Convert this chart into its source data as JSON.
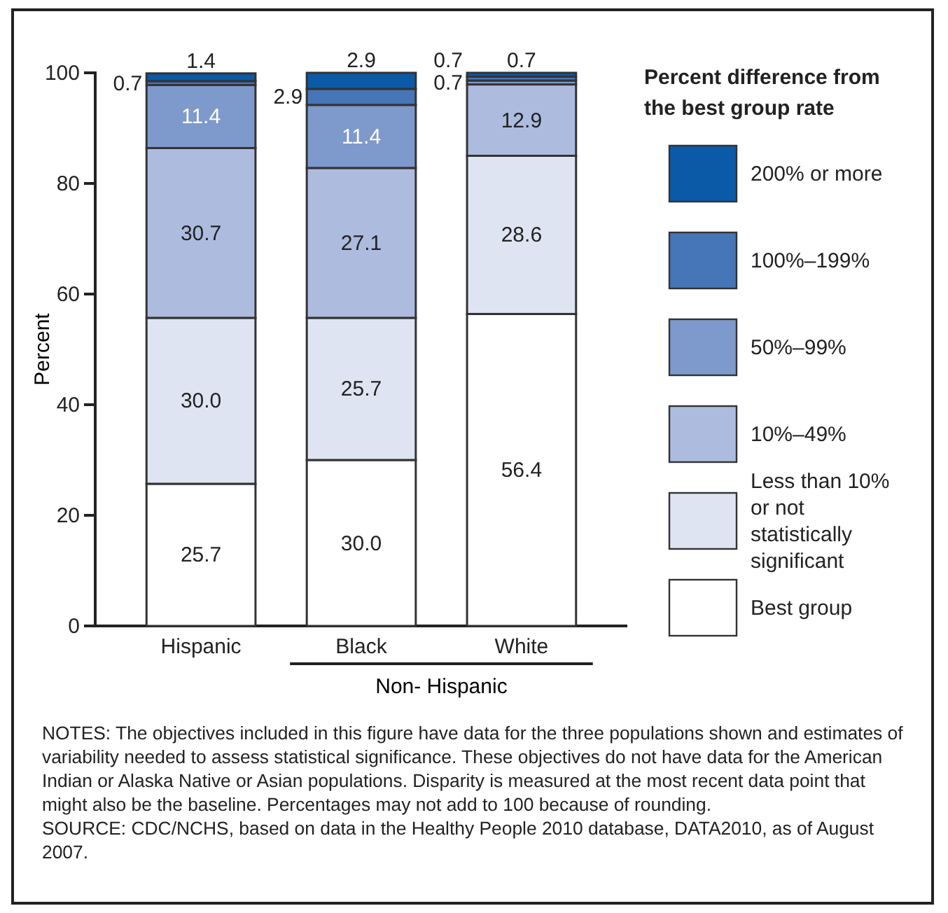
{
  "chart_data": {
    "type": "bar",
    "stacked": true,
    "ylabel": "Percent",
    "legend_title": "Percent difference from the best group rate",
    "legend": "right",
    "categories": [
      "Hispanic",
      "Black",
      "White"
    ],
    "ylim": [
      0,
      100
    ],
    "yticks": [
      0,
      20,
      40,
      60,
      80,
      100
    ],
    "series": [
      {
        "name": "Best group",
        "color": "#ffffff",
        "values": [
          25.7,
          30.0,
          56.4
        ],
        "value_labels": [
          "25.7",
          "30.0",
          "56.4"
        ]
      },
      {
        "name": "Less than 10% or not statistically significant",
        "color": "#dfe4f2",
        "values": [
          30.0,
          25.7,
          28.6
        ],
        "value_labels": [
          "30.0",
          "25.7",
          "28.6"
        ]
      },
      {
        "name": "10%–49%",
        "color": "#adbbdf",
        "values": [
          30.7,
          27.1,
          12.9
        ],
        "value_labels": [
          "30.7",
          "27.1",
          "12.9"
        ]
      },
      {
        "name": "50%–99%",
        "color": "#7e99cb",
        "values": [
          11.4,
          11.4,
          0.7
        ],
        "value_labels": [
          "11.4",
          "11.4",
          "0.7"
        ]
      },
      {
        "name": "100%–199%",
        "color": "#4675b8",
        "values": [
          0.7,
          2.9,
          0.7
        ],
        "value_labels": [
          "0.7",
          "2.9",
          "0.7"
        ]
      },
      {
        "name": "200% or more",
        "color": "#0a5aa8",
        "values": [
          1.4,
          2.9,
          0.7
        ],
        "value_labels": [
          "1.4",
          "2.9",
          "0.7"
        ]
      }
    ],
    "annotations": [
      "Non- Hispanic",
      "NOTES: The objectives included in this figure have data for the three populations shown and estimates of variability needed to assess statistical significance. These objectives do not have data for the American Indian or Alaska Native or Asian populations. Disparity is measured at the most recent data point that might also be the baseline.  Percentages may not add to 100 because of rounding.",
      "SOURCE: CDC/NCHS, based on data in the Healthy People 2010 database, DATA2010, as of August 2007."
    ]
  }
}
